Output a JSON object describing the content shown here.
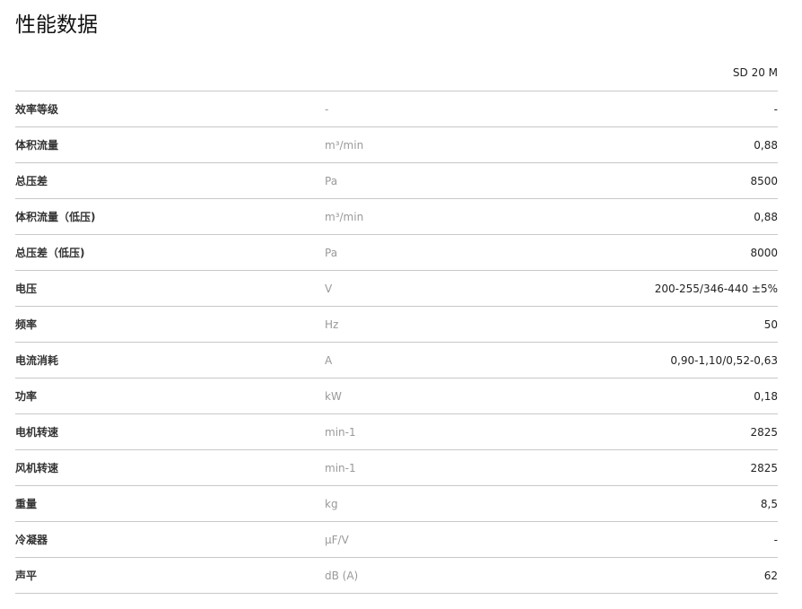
{
  "title": "性能数据",
  "column_header": "SD 20 M",
  "rows": [
    {
      "label": "效率等级",
      "unit": "-",
      "value": "-"
    },
    {
      "label": "体积流量",
      "unit": "m³/min",
      "value": "0,88"
    },
    {
      "label": "总压差",
      "unit": "Pa",
      "value": "8500"
    },
    {
      "label": "体积流量（低压)",
      "unit": "m³/min",
      "value": "0,88"
    },
    {
      "label": "总压差（低压)",
      "unit": "Pa",
      "value": "8000"
    },
    {
      "label": "电压",
      "unit": "V",
      "value": "200-255/346-440 ±5%"
    },
    {
      "label": "频率",
      "unit": "Hz",
      "value": "50"
    },
    {
      "label": "电流消耗",
      "unit": "A",
      "value": "0,90-1,10/0,52-0,63"
    },
    {
      "label": "功率",
      "unit": "kW",
      "value": "0,18"
    },
    {
      "label": "电机转速",
      "unit": "min-1",
      "value": "2825"
    },
    {
      "label": "风机转速",
      "unit": "min-1",
      "value": "2825"
    },
    {
      "label": "重量",
      "unit": "kg",
      "value": "8,5"
    },
    {
      "label": "冷凝器",
      "unit": "µF/V",
      "value": "-"
    },
    {
      "label": "声平",
      "unit": "dB (A)",
      "value": "62"
    }
  ]
}
